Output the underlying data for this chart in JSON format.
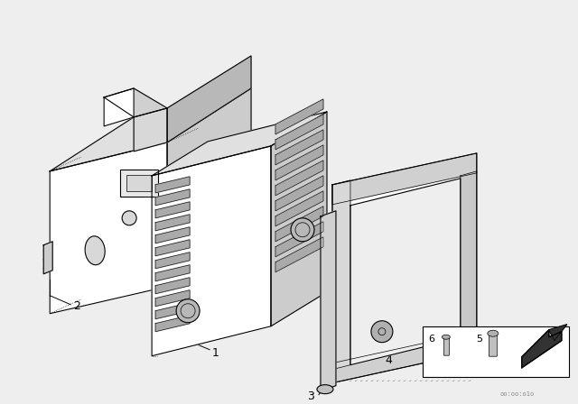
{
  "bg_color": "#eeeeee",
  "line_color": "#000000",
  "watermark": "oo:oo:o1o"
}
